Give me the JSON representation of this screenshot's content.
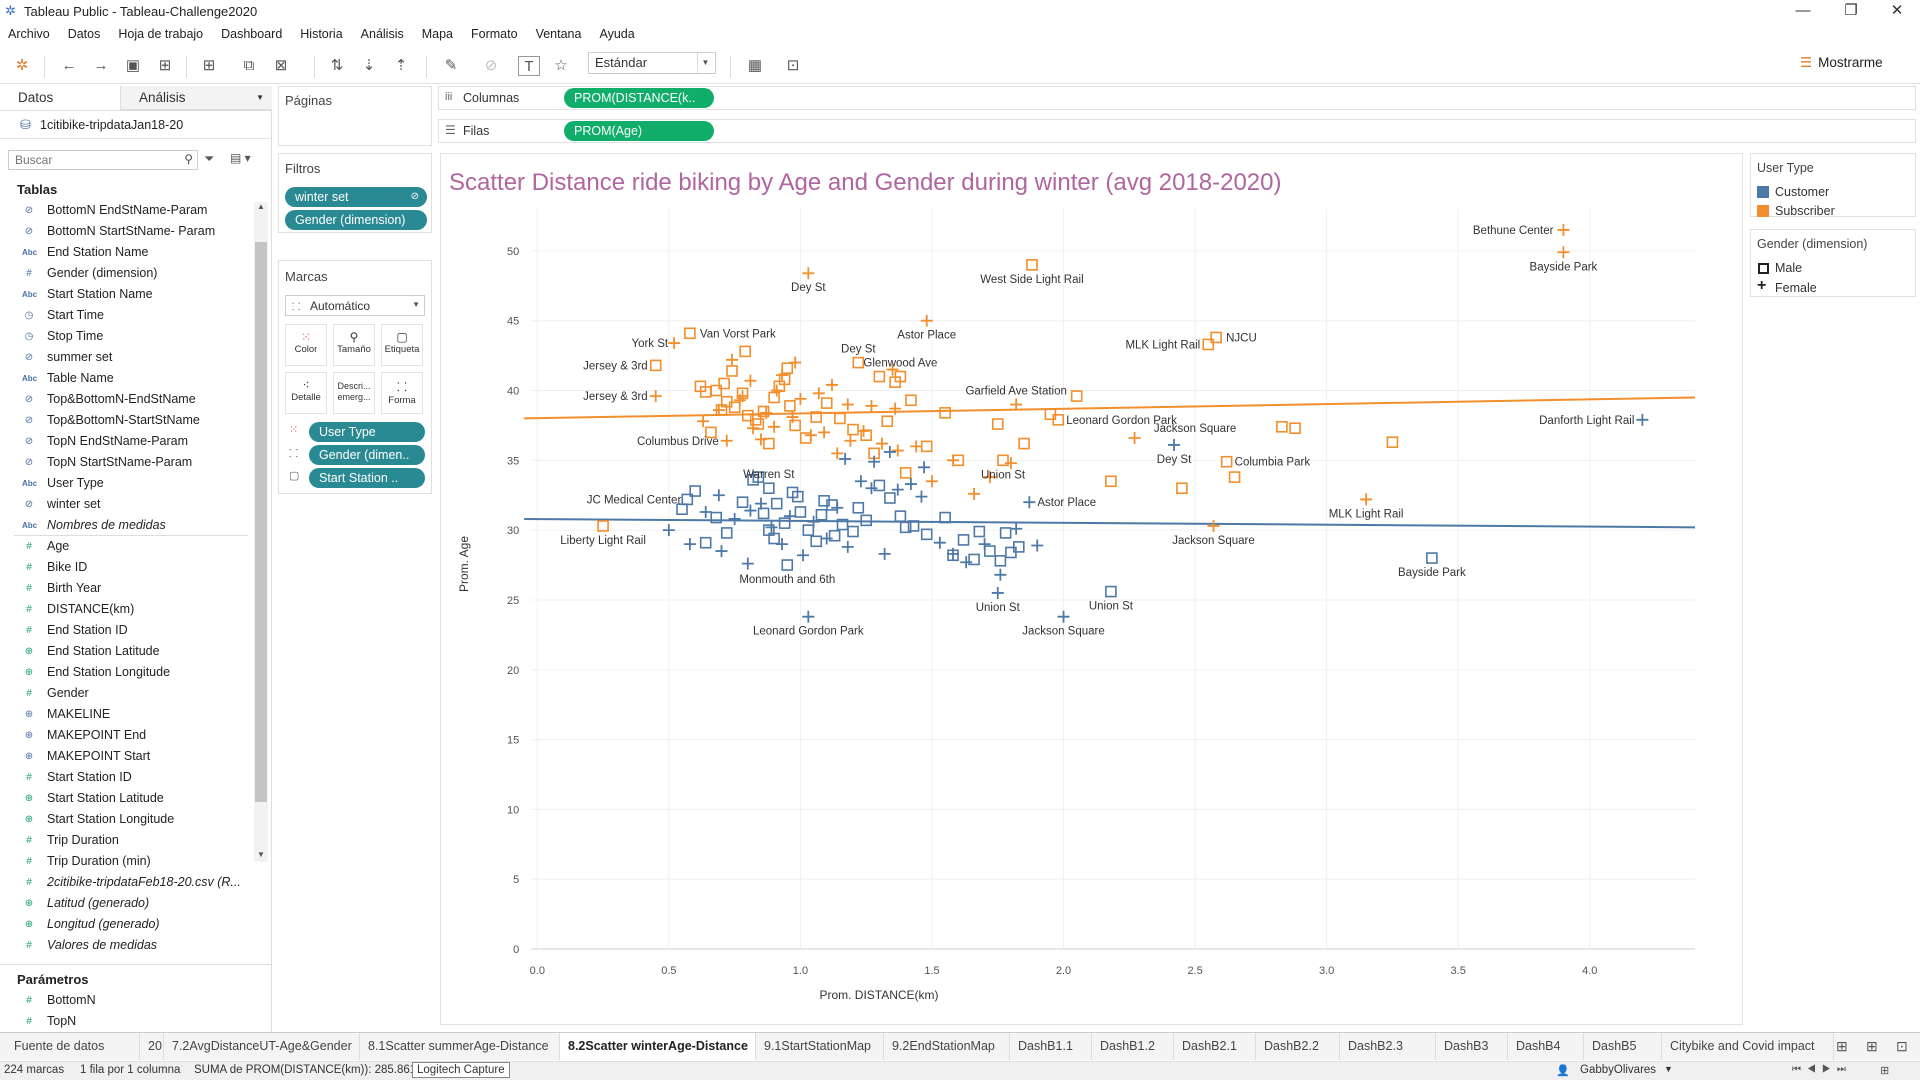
{
  "app": {
    "title": "Tableau Public - Tableau-Challenge2020",
    "menu": [
      "Archivo",
      "Datos",
      "Hoja de trabajo",
      "Dashboard",
      "Historia",
      "Análisis",
      "Mapa",
      "Formato",
      "Ventana",
      "Ayuda"
    ],
    "toolbar": {
      "fit_value": "Estándar",
      "show_me": "Mostrarme"
    }
  },
  "datapane": {
    "tab_data": "Datos",
    "tab_analysis": "Análisis",
    "datasource": "1citibike-tripdataJan18-20",
    "search_placeholder": "Buscar",
    "tables_header": "Tablas",
    "fields": [
      {
        "label": "BottomN EndStName-Param",
        "icon": "set-icon",
        "glyph": "⊘",
        "cls": "ic-dim"
      },
      {
        "label": "BottomN StartStName- Param",
        "icon": "set-icon",
        "glyph": "⊘",
        "cls": "ic-dim"
      },
      {
        "label": "End Station Name",
        "icon": "abc-icon",
        "glyph": "Abc",
        "cls": "ic-abc"
      },
      {
        "label": "Gender (dimension)",
        "icon": "number-icon",
        "glyph": "#",
        "cls": "ic-dim"
      },
      {
        "label": "Start Station Name",
        "icon": "abc-icon",
        "glyph": "Abc",
        "cls": "ic-abc"
      },
      {
        "label": "Start Time",
        "icon": "date-icon",
        "glyph": "◷",
        "cls": "ic-dim"
      },
      {
        "label": "Stop Time",
        "icon": "date-icon",
        "glyph": "◷",
        "cls": "ic-dim"
      },
      {
        "label": "summer set",
        "icon": "set-icon",
        "glyph": "⊘",
        "cls": "ic-dim"
      },
      {
        "label": "Table Name",
        "icon": "abc-icon",
        "glyph": "Abc",
        "cls": "ic-abc"
      },
      {
        "label": "Top&BottomN-EndStName",
        "icon": "set-icon",
        "glyph": "⊘",
        "cls": "ic-dim"
      },
      {
        "label": "Top&BottomN-StartStName",
        "icon": "set-icon",
        "glyph": "⊘",
        "cls": "ic-dim"
      },
      {
        "label": "TopN EndStName-Param",
        "icon": "set-icon",
        "glyph": "⊘",
        "cls": "ic-dim"
      },
      {
        "label": "TopN StartStName-Param",
        "icon": "set-icon",
        "glyph": "⊘",
        "cls": "ic-dim"
      },
      {
        "label": "User Type",
        "icon": "abc-icon",
        "glyph": "Abc",
        "cls": "ic-abc"
      },
      {
        "label": "winter set",
        "icon": "set-icon",
        "glyph": "⊘",
        "cls": "ic-dim"
      },
      {
        "label": "Nombres de medidas",
        "icon": "abc-icon",
        "glyph": "Abc",
        "cls": "ic-abc italic"
      },
      {
        "label": "Age",
        "icon": "number-icon",
        "glyph": "#",
        "cls": "ic-num"
      },
      {
        "label": "Bike ID",
        "icon": "number-icon",
        "glyph": "#",
        "cls": "ic-num"
      },
      {
        "label": "Birth Year",
        "icon": "number-icon",
        "glyph": "#",
        "cls": "ic-num"
      },
      {
        "label": "DISTANCE(km)",
        "icon": "number-icon",
        "glyph": "#",
        "cls": "ic-num"
      },
      {
        "label": "End Station ID",
        "icon": "number-icon",
        "glyph": "#",
        "cls": "ic-num"
      },
      {
        "label": "End Station Latitude",
        "icon": "globe-icon",
        "glyph": "⊕",
        "cls": "ic-geo"
      },
      {
        "label": "End Station Longitude",
        "icon": "globe-icon",
        "glyph": "⊕",
        "cls": "ic-geo"
      },
      {
        "label": "Gender",
        "icon": "number-icon",
        "glyph": "#",
        "cls": "ic-num"
      },
      {
        "label": "MAKELINE",
        "icon": "geometry-icon",
        "glyph": "⊕",
        "cls": "ic-dim"
      },
      {
        "label": "MAKEPOINT End",
        "icon": "geometry-icon",
        "glyph": "⊕",
        "cls": "ic-dim"
      },
      {
        "label": "MAKEPOINT Start",
        "icon": "geometry-icon",
        "glyph": "⊕",
        "cls": "ic-dim"
      },
      {
        "label": "Start Station ID",
        "icon": "number-icon",
        "glyph": "#",
        "cls": "ic-num"
      },
      {
        "label": "Start Station Latitude",
        "icon": "globe-icon",
        "glyph": "⊕",
        "cls": "ic-geo"
      },
      {
        "label": "Start Station Longitude",
        "icon": "globe-icon",
        "glyph": "⊕",
        "cls": "ic-geo"
      },
      {
        "label": "Trip Duration",
        "icon": "number-icon",
        "glyph": "#",
        "cls": "ic-num"
      },
      {
        "label": "Trip Duration (min)",
        "icon": "number-icon",
        "glyph": "#",
        "cls": "ic-num"
      },
      {
        "label": "2citibike-tripdataFeb18-20.csv (R...",
        "icon": "number-icon",
        "glyph": "#",
        "cls": "ic-num italic"
      },
      {
        "label": "Latitud (generado)",
        "icon": "globe-icon",
        "glyph": "⊕",
        "cls": "ic-geo italic"
      },
      {
        "label": "Longitud (generado)",
        "icon": "globe-icon",
        "glyph": "⊕",
        "cls": "ic-geo italic"
      },
      {
        "label": "Valores de medidas",
        "icon": "number-icon",
        "glyph": "#",
        "cls": "ic-num italic"
      }
    ],
    "params_header": "Parámetros",
    "params": [
      {
        "label": "BottomN",
        "icon": "number-icon",
        "glyph": "#",
        "cls": "ic-num"
      },
      {
        "label": "TopN",
        "icon": "number-icon",
        "glyph": "#",
        "cls": "ic-num"
      }
    ]
  },
  "shelves": {
    "pages": "Páginas",
    "filters": "Filtros",
    "filter_pills": [
      "winter set",
      "Gender (dimension)"
    ],
    "marks": "Marcas",
    "mark_type": "Automático",
    "mark_buttons": [
      "Color",
      "Tamaño",
      "Etiqueta",
      "Detalle",
      "Descri... emerg...",
      "Forma"
    ],
    "mark_pills": [
      "User Type",
      "Gender (dimen..",
      "Start Station .."
    ],
    "columns_label": "Columnas",
    "columns_pill": "PROM(DISTANCE(k..",
    "rows_label": "Filas",
    "rows_pill": "PROM(Age)"
  },
  "legends": {
    "user_type_title": "User Type",
    "user_types": [
      {
        "label": "Customer",
        "color": "#4e79a7"
      },
      {
        "label": "Subscriber",
        "color": "#f28e2b"
      }
    ],
    "gender_title": "Gender (dimension)",
    "genders": [
      {
        "label": "Male",
        "shape": "square"
      },
      {
        "label": "Female",
        "shape": "plus"
      }
    ]
  },
  "chart_data": {
    "type": "scatter",
    "title": "Scatter Distance ride biking by Age and Gender during winter (avg 2018-2020)",
    "xlabel": "Prom. DISTANCE(km)",
    "ylabel": "Prom. Age",
    "xlim": [
      -0.1,
      4.4
    ],
    "ylim": [
      0,
      53
    ],
    "xticks": [
      "0.0",
      "0.5",
      "1.0",
      "1.5",
      "2.0",
      "2.5",
      "3.0",
      "3.5",
      "4.0"
    ],
    "yticks": [
      "0",
      "5",
      "10",
      "15",
      "20",
      "25",
      "30",
      "35",
      "40",
      "45",
      "50"
    ],
    "colors": {
      "Customer": "#4e79a7",
      "Subscriber": "#f28e2b"
    },
    "trend_lines": [
      {
        "series": "Subscriber",
        "x": [
          -0.05,
          4.4
        ],
        "y": [
          38.0,
          39.5
        ]
      },
      {
        "series": "Customer",
        "x": [
          -0.05,
          4.4
        ],
        "y": [
          30.8,
          30.2
        ]
      }
    ],
    "labeled_points": [
      {
        "label": "Bethune Center",
        "x": 3.9,
        "y": 51.5,
        "type": "Subscriber",
        "gender": "Female"
      },
      {
        "label": "Bayside Park",
        "x": 3.9,
        "y": 49.9,
        "type": "Subscriber",
        "gender": "Female"
      },
      {
        "label": "Dey St",
        "x": 1.03,
        "y": 48.4,
        "type": "Subscriber",
        "gender": "Female"
      },
      {
        "label": "West Side Light Rail",
        "x": 1.88,
        "y": 49.0,
        "type": "Subscriber",
        "gender": "Male"
      },
      {
        "label": "Astor Place",
        "x": 1.48,
        "y": 45.0,
        "type": "Subscriber",
        "gender": "Female"
      },
      {
        "label": "Van Vorst Park",
        "x": 0.58,
        "y": 44.1,
        "type": "Subscriber",
        "gender": "Male"
      },
      {
        "label": "York St",
        "x": 0.52,
        "y": 43.4,
        "type": "Subscriber",
        "gender": "Female"
      },
      {
        "label": "MLK Light Rail",
        "x": 2.55,
        "y": 43.3,
        "type": "Subscriber",
        "gender": "Male"
      },
      {
        "label": "NJCU",
        "x": 2.58,
        "y": 43.8,
        "type": "Subscriber",
        "gender": "Male"
      },
      {
        "label": "Jersey & 3rd",
        "x": 0.45,
        "y": 41.8,
        "type": "Subscriber",
        "gender": "Male"
      },
      {
        "label": "Dey St",
        "x": 1.22,
        "y": 42.0,
        "type": "Subscriber",
        "gender": "Male"
      },
      {
        "label": "Glenwood Ave",
        "x": 1.38,
        "y": 41.0,
        "type": "Subscriber",
        "gender": "Male"
      },
      {
        "label": "Jersey & 3rd",
        "x": 0.45,
        "y": 39.6,
        "type": "Subscriber",
        "gender": "Female"
      },
      {
        "label": "Garfield Ave Station",
        "x": 1.82,
        "y": 39.0,
        "type": "Subscriber",
        "gender": "Female"
      },
      {
        "label": "Leonard Gordon Park",
        "x": 1.98,
        "y": 37.9,
        "type": "Subscriber",
        "gender": "Male"
      },
      {
        "label": "Danforth Light Rail",
        "x": 4.2,
        "y": 37.9,
        "type": "Customer",
        "gender": "Female"
      },
      {
        "label": "Jackson Square",
        "x": 2.88,
        "y": 37.3,
        "type": "Subscriber",
        "gender": "Male"
      },
      {
        "label": "Columbus Drive",
        "x": 0.72,
        "y": 36.4,
        "type": "Subscriber",
        "gender": "Female"
      },
      {
        "label": "Dey St",
        "x": 2.42,
        "y": 36.1,
        "type": "Customer",
        "gender": "Female"
      },
      {
        "label": "Columbia Park",
        "x": 2.62,
        "y": 34.9,
        "type": "Subscriber",
        "gender": "Male"
      },
      {
        "label": "Union St",
        "x": 1.77,
        "y": 35.0,
        "type": "Subscriber",
        "gender": "Male"
      },
      {
        "label": "Warren St",
        "x": 0.88,
        "y": 33.0,
        "type": "Customer",
        "gender": "Male"
      },
      {
        "label": "JC Medical Center",
        "x": 0.57,
        "y": 32.2,
        "type": "Customer",
        "gender": "Male"
      },
      {
        "label": "Astor Place",
        "x": 1.87,
        "y": 32.0,
        "type": "Customer",
        "gender": "Female"
      },
      {
        "label": "MLK Light Rail",
        "x": 3.15,
        "y": 32.2,
        "type": "Subscriber",
        "gender": "Female"
      },
      {
        "label": "Liberty Light Rail",
        "x": 0.25,
        "y": 30.3,
        "type": "Subscriber",
        "gender": "Male"
      },
      {
        "label": "Jackson Square",
        "x": 2.57,
        "y": 30.3,
        "type": "Subscriber",
        "gender": "Female"
      },
      {
        "label": "Bayside Park",
        "x": 3.4,
        "y": 28.0,
        "type": "Customer",
        "gender": "Male"
      },
      {
        "label": "Monmouth and 6th",
        "x": 0.95,
        "y": 27.5,
        "type": "Customer",
        "gender": "Male"
      },
      {
        "label": "Union St",
        "x": 1.75,
        "y": 25.5,
        "type": "Customer",
        "gender": "Female"
      },
      {
        "label": "Union St",
        "x": 2.18,
        "y": 25.6,
        "type": "Customer",
        "gender": "Male"
      },
      {
        "label": "Leonard Gordon Park",
        "x": 1.03,
        "y": 23.8,
        "type": "Customer",
        "gender": "Female"
      },
      {
        "label": "Jackson Square",
        "x": 2.0,
        "y": 23.8,
        "type": "Customer",
        "gender": "Female"
      }
    ],
    "cluster_points": [
      {
        "type": "Subscriber",
        "gender": "Male",
        "x": [
          0.62,
          0.68,
          0.72,
          0.75,
          0.8,
          0.83,
          0.86,
          0.9,
          0.94,
          0.98,
          1.02,
          1.06,
          0.78,
          0.7,
          0.66,
          0.88,
          0.92,
          1.1,
          1.15,
          1.2,
          1.3,
          1.36,
          1.42,
          1.33,
          1.25,
          0.74,
          0.84,
          0.96,
          0.64,
          1.48,
          1.55,
          1.28,
          1.4,
          1.85,
          1.95,
          2.05,
          1.75,
          1.6,
          2.18,
          2.45,
          2.65,
          2.83,
          3.25,
          0.79,
          0.71,
          0.95
        ],
        "y": [
          40.3,
          40.0,
          39.2,
          38.8,
          38.2,
          37.9,
          38.5,
          39.5,
          40.8,
          37.5,
          36.6,
          38.1,
          39.8,
          38.6,
          37.0,
          36.2,
          40.3,
          39.1,
          38.0,
          37.2,
          41.0,
          40.6,
          39.3,
          37.8,
          36.8,
          41.4,
          37.6,
          38.9,
          39.9,
          36.0,
          38.4,
          35.5,
          34.1,
          36.2,
          38.3,
          39.6,
          37.6,
          35.0,
          33.5,
          33.0,
          33.8,
          37.4,
          36.3,
          42.8,
          40.5,
          41.6
        ]
      },
      {
        "type": "Subscriber",
        "gender": "Female",
        "x": [
          0.63,
          0.69,
          0.77,
          0.82,
          0.87,
          0.91,
          0.97,
          1.04,
          1.09,
          1.14,
          1.19,
          1.24,
          1.31,
          1.37,
          0.74,
          0.81,
          0.93,
          1.0,
          1.12,
          1.18,
          1.27,
          1.35,
          1.44,
          1.5,
          1.58,
          1.66,
          1.72,
          1.8,
          1.36,
          0.9,
          0.85,
          1.07,
          2.27,
          0.98,
          0.78
        ],
        "y": [
          37.8,
          38.6,
          39.3,
          37.3,
          38.4,
          40.0,
          38.1,
          36.8,
          37.0,
          35.5,
          36.4,
          37.1,
          36.2,
          35.7,
          42.2,
          40.7,
          41.1,
          39.4,
          40.4,
          39.0,
          38.9,
          41.5,
          36.0,
          33.5,
          35.0,
          32.6,
          33.8,
          34.8,
          38.7,
          37.4,
          36.5,
          39.8,
          36.6,
          42.0,
          39.6
        ]
      },
      {
        "type": "Customer",
        "gender": "Male",
        "x": [
          0.55,
          0.6,
          0.68,
          0.72,
          0.78,
          0.82,
          0.86,
          0.9,
          0.94,
          0.97,
          1.0,
          1.03,
          1.06,
          1.09,
          1.12,
          1.16,
          1.2,
          1.25,
          1.3,
          1.34,
          1.38,
          1.43,
          1.48,
          1.55,
          1.62,
          1.68,
          1.72,
          1.76,
          1.8,
          0.84,
          0.88,
          0.91,
          0.99,
          1.08,
          1.13,
          1.22,
          1.4,
          1.66,
          1.78,
          1.58,
          1.83,
          0.64
        ],
        "y": [
          31.5,
          32.8,
          30.9,
          29.8,
          32.0,
          33.6,
          31.2,
          29.4,
          30.5,
          32.7,
          31.3,
          30.0,
          29.2,
          32.1,
          31.8,
          30.4,
          29.9,
          30.7,
          33.2,
          32.3,
          31.0,
          30.3,
          29.7,
          30.9,
          29.3,
          29.9,
          28.5,
          27.8,
          28.4,
          33.8,
          30.0,
          31.9,
          32.4,
          31.1,
          29.6,
          31.6,
          30.2,
          27.9,
          29.8,
          28.2,
          28.8,
          29.1
        ]
      },
      {
        "type": "Customer",
        "gender": "Female",
        "x": [
          0.5,
          0.58,
          0.64,
          0.7,
          0.75,
          0.8,
          0.85,
          0.89,
          0.93,
          0.96,
          1.01,
          1.05,
          1.1,
          1.14,
          1.18,
          1.23,
          1.27,
          1.32,
          1.37,
          1.42,
          1.47,
          1.53,
          1.58,
          1.63,
          1.7,
          1.76,
          1.82,
          1.9,
          0.69,
          0.81,
          1.28,
          1.34,
          1.17,
          1.46
        ],
        "y": [
          30.0,
          29.0,
          31.3,
          28.5,
          30.8,
          27.6,
          31.9,
          30.2,
          29.0,
          31.0,
          28.2,
          30.6,
          29.4,
          31.6,
          28.8,
          33.5,
          33.0,
          28.3,
          32.9,
          33.3,
          34.5,
          29.1,
          28.3,
          27.7,
          29.0,
          26.8,
          30.1,
          28.9,
          32.5,
          31.4,
          34.9,
          35.6,
          35.1,
          32.4
        ]
      }
    ]
  },
  "sheet_tabs": [
    "Fuente de datos",
    "20",
    "7.2AvgDistanceUT-Age&Gender",
    "8.1Scatter summerAge-Distance",
    "8.2Scatter winterAge-Distance",
    "9.1StartStationMap",
    "9.2EndStationMap",
    "DashB1.1",
    "DashB1.2",
    "DashB2.1",
    "DashB2.2",
    "DashB2.3",
    "DashB3",
    "DashB4",
    "DashB5",
    "Citybike and Covid impact"
  ],
  "status": {
    "marks": "224 marcas",
    "dims": "1 fila por 1 columna",
    "sum": "SUMA de PROM(DISTANCE(km)): 285.861",
    "overlay": "Logitech Capture",
    "user": "GabbyOlivares"
  }
}
